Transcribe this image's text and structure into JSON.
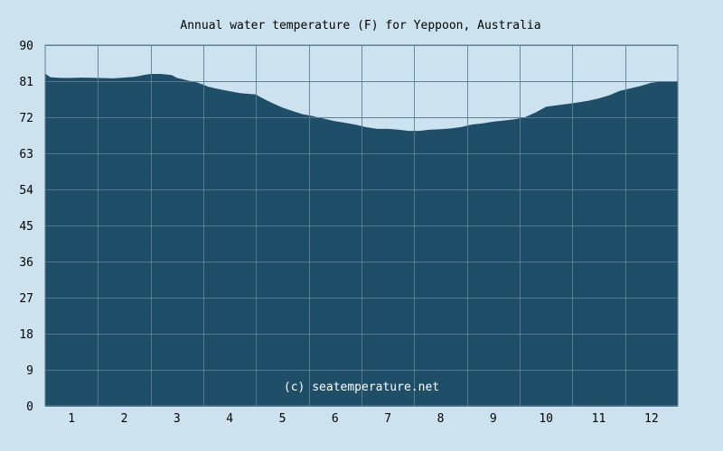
{
  "chart_data": {
    "type": "area",
    "title": "Annual water temperature (F) for Yeppoon, Australia",
    "xlabel": "",
    "ylabel": "",
    "watermark": "(c) seatemperature.net",
    "x_ticks": [
      "1",
      "2",
      "3",
      "4",
      "5",
      "6",
      "7",
      "8",
      "9",
      "10",
      "11",
      "12"
    ],
    "y_ticks": [
      0,
      9,
      18,
      27,
      36,
      45,
      54,
      63,
      72,
      81,
      90
    ],
    "xlim": [
      0.5,
      12.5
    ],
    "ylim": [
      0,
      90
    ],
    "grid": true,
    "colors": {
      "background": "#cce3ef",
      "fill": "#1f4e69",
      "grid": "#5e7f95",
      "watermark": "#ffffff"
    },
    "series": [
      {
        "x": [
          0.5,
          0.6,
          0.8,
          1.0,
          1.2,
          1.5,
          1.8,
          2.0,
          2.2,
          2.4,
          2.5,
          2.7,
          2.9,
          3.0,
          3.2,
          3.4,
          3.6,
          3.8,
          4.0,
          4.2,
          4.4,
          4.5,
          4.6,
          4.8,
          5.0,
          5.2,
          5.4,
          5.5,
          5.7,
          6.0,
          6.2,
          6.4,
          6.6,
          6.8,
          7.0,
          7.2,
          7.4,
          7.6,
          7.8,
          8.0,
          8.2,
          8.4,
          8.6,
          8.8,
          9.0,
          9.2,
          9.4,
          9.6,
          9.8,
          10.0,
          10.2,
          10.4,
          10.6,
          10.8,
          11.0,
          11.2,
          11.4,
          11.6,
          11.8,
          12.0,
          12.2,
          12.5
        ],
        "y": [
          82.9,
          82.0,
          81.8,
          81.8,
          81.9,
          81.8,
          81.7,
          81.9,
          82.1,
          82.6,
          82.8,
          82.8,
          82.5,
          81.8,
          81.2,
          80.6,
          79.6,
          79.0,
          78.5,
          78.0,
          77.8,
          77.7,
          76.9,
          75.6,
          74.4,
          73.5,
          72.7,
          72.5,
          71.9,
          71.0,
          70.6,
          70.1,
          69.5,
          69.1,
          69.1,
          68.9,
          68.6,
          68.6,
          68.9,
          69.0,
          69.2,
          69.6,
          70.2,
          70.5,
          70.9,
          71.2,
          71.5,
          72.0,
          73.2,
          74.6,
          75.0,
          75.3,
          75.7,
          76.1,
          76.7,
          77.5,
          78.6,
          79.2,
          79.8,
          80.6,
          80.9,
          80.9
        ]
      }
    ]
  }
}
